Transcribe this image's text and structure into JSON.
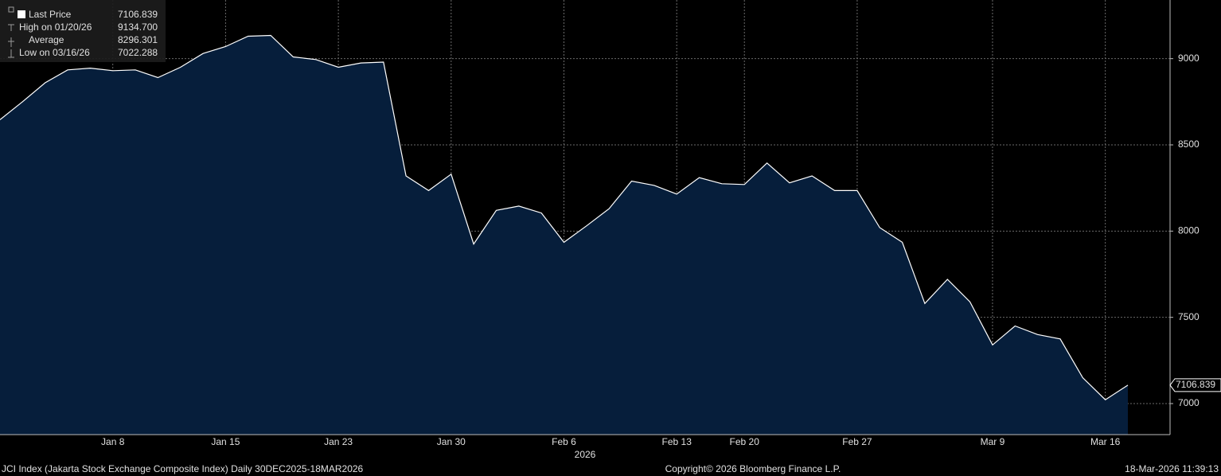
{
  "chart_data": {
    "type": "area",
    "series": [
      {
        "name": "Last Price",
        "color": "#ffffff",
        "fill": "#061e3b",
        "values": [
          8646,
          8750,
          8860,
          8935,
          8945,
          8930,
          8935,
          8890,
          8950,
          9030,
          9070,
          9130,
          9134.7,
          9010,
          8995,
          8950,
          8975,
          8980,
          8320,
          8235,
          8330,
          7925,
          8120,
          8145,
          8105,
          7935,
          8030,
          8130,
          8290,
          8265,
          8215,
          8310,
          8275,
          8270,
          8395,
          8280,
          8320,
          8235,
          8235,
          8020,
          7935,
          7580,
          7720,
          7590,
          7340,
          7450,
          7400,
          7375,
          7150,
          7022.288,
          7106.839
        ]
      }
    ],
    "categories": [
      null,
      null,
      null,
      null,
      null,
      "Jan 8",
      null,
      null,
      null,
      null,
      "Jan 15",
      null,
      null,
      null,
      null,
      "Jan 23",
      null,
      null,
      null,
      null,
      "Jan 30",
      null,
      null,
      null,
      null,
      "Feb 6",
      null,
      null,
      null,
      null,
      "Feb 13",
      null,
      null,
      "Feb 20",
      null,
      null,
      null,
      null,
      "Feb 27",
      null,
      null,
      null,
      null,
      null,
      "Mar 9",
      null,
      null,
      null,
      null,
      "Mar 16",
      null
    ],
    "year_label": "2026",
    "ylim": [
      6820,
      9340
    ],
    "yticks": [
      7000,
      7500,
      8000,
      8500,
      9000
    ],
    "grid": true,
    "last_value_label": "7106.839",
    "legend": {
      "rows": [
        {
          "label": "Last Price",
          "value": "7106.839"
        },
        {
          "label": "High on 01/20/26",
          "value": "9134.700"
        },
        {
          "label": "Average",
          "value": "8296.301"
        },
        {
          "label": "Low on 03/16/26",
          "value": "7022.288"
        }
      ]
    },
    "footer": {
      "left": "JCI Index (Jakarta Stock Exchange Composite Index) Daily 30DEC2025-18MAR2026",
      "center": "Copyright© 2026 Bloomberg Finance L.P.",
      "right": "18-Mar-2026 11:39:13"
    }
  }
}
